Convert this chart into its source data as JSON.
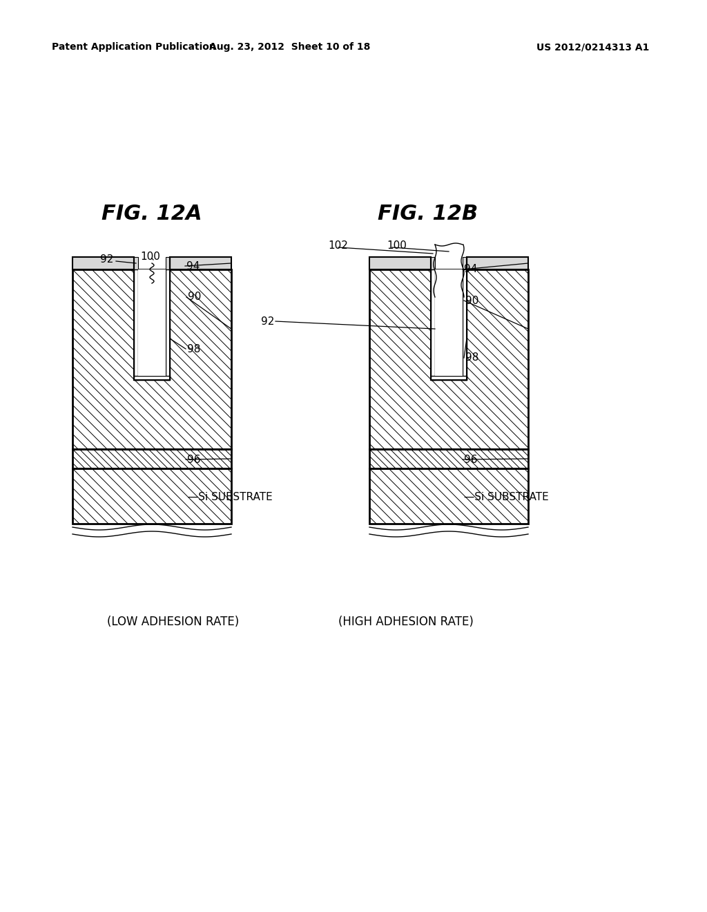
{
  "background_color": "#ffffff",
  "header_left": "Patent Application Publication",
  "header_center": "Aug. 23, 2012  Sheet 10 of 18",
  "header_right": "US 2012/0214313 A1",
  "fig12a_title": "FIG. 12A",
  "fig12b_title": "FIG. 12B",
  "caption_a": "(LOW ADHESION RATE)",
  "caption_b": "(HIGH ADHESION RATE)"
}
